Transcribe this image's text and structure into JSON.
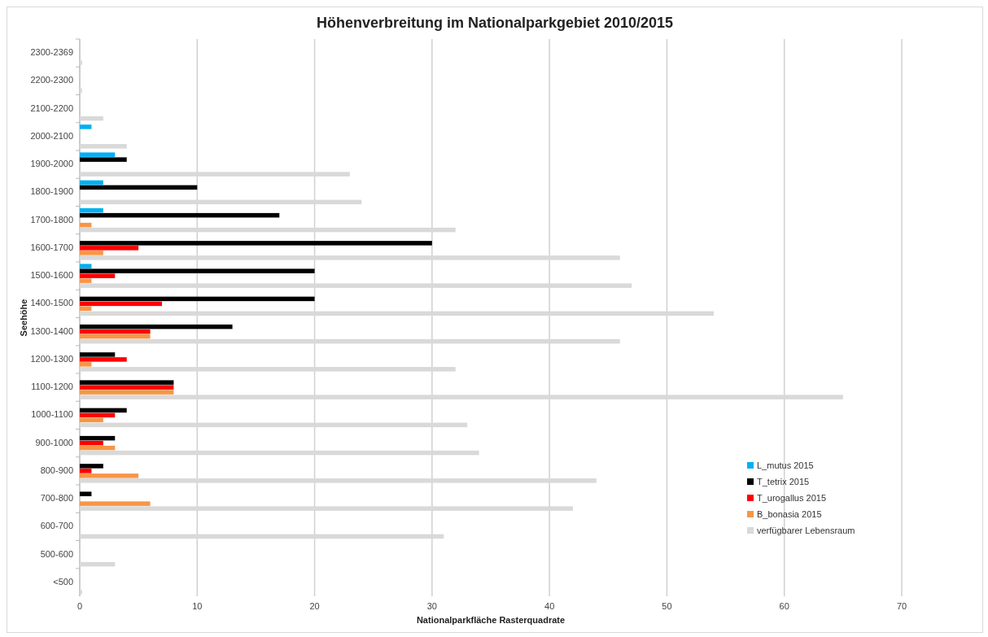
{
  "chart_data": {
    "type": "bar",
    "orientation": "horizontal",
    "title": "Höhenverbreitung im Nationalparkgebiet 2010/2015",
    "xlabel": "Nationalparkfläche Rasterquadrate",
    "ylabel": "Seehöhe",
    "categories": [
      "2300-2369",
      "2200-2300",
      "2100-2200",
      "2000-2100",
      "1900-2000",
      "1800-1900",
      "1700-1800",
      "1600-1700",
      "1500-1600",
      "1400-1500",
      "1300-1400",
      "1200-1300",
      "1100-1200",
      "1000-1100",
      "900-1000",
      "800-900",
      "700-800",
      "600-700",
      "500-600",
      "<500"
    ],
    "series": [
      {
        "name": "L_mutus 2015",
        "color": "#00b0f0",
        "values": [
          null,
          null,
          null,
          1,
          3,
          2,
          2,
          null,
          1,
          null,
          null,
          null,
          null,
          null,
          null,
          null,
          null,
          null,
          null,
          null
        ]
      },
      {
        "name": "T_tetrix 2015",
        "color": "#000000",
        "values": [
          null,
          null,
          null,
          null,
          4,
          10,
          17,
          30,
          20,
          20,
          13,
          3,
          8,
          4,
          3,
          2,
          1,
          null,
          null,
          null
        ]
      },
      {
        "name": "T_urogallus 2015",
        "color": "#ff0000",
        "values": [
          null,
          null,
          null,
          null,
          null,
          null,
          null,
          5,
          3,
          7,
          6,
          4,
          8,
          3,
          2,
          1,
          null,
          null,
          null,
          null
        ]
      },
      {
        "name": "B_bonasia 2015",
        "color": "#f79646",
        "values": [
          null,
          null,
          null,
          null,
          null,
          null,
          1,
          2,
          1,
          1,
          6,
          1,
          8,
          2,
          3,
          5,
          6,
          null,
          null,
          null
        ]
      },
      {
        "name": "verfügbarer Lebensraum",
        "color": "#d9d9d9",
        "values": [
          0.2,
          0.2,
          2,
          4,
          23,
          24,
          32,
          46,
          47,
          54,
          46,
          32,
          65,
          33,
          34,
          44,
          42,
          31,
          3,
          0.2
        ]
      }
    ],
    "xlim": [
      0,
      70
    ],
    "xticks": [
      0,
      10,
      20,
      30,
      40,
      50,
      60,
      70
    ],
    "grid": "x",
    "legend": "right"
  }
}
